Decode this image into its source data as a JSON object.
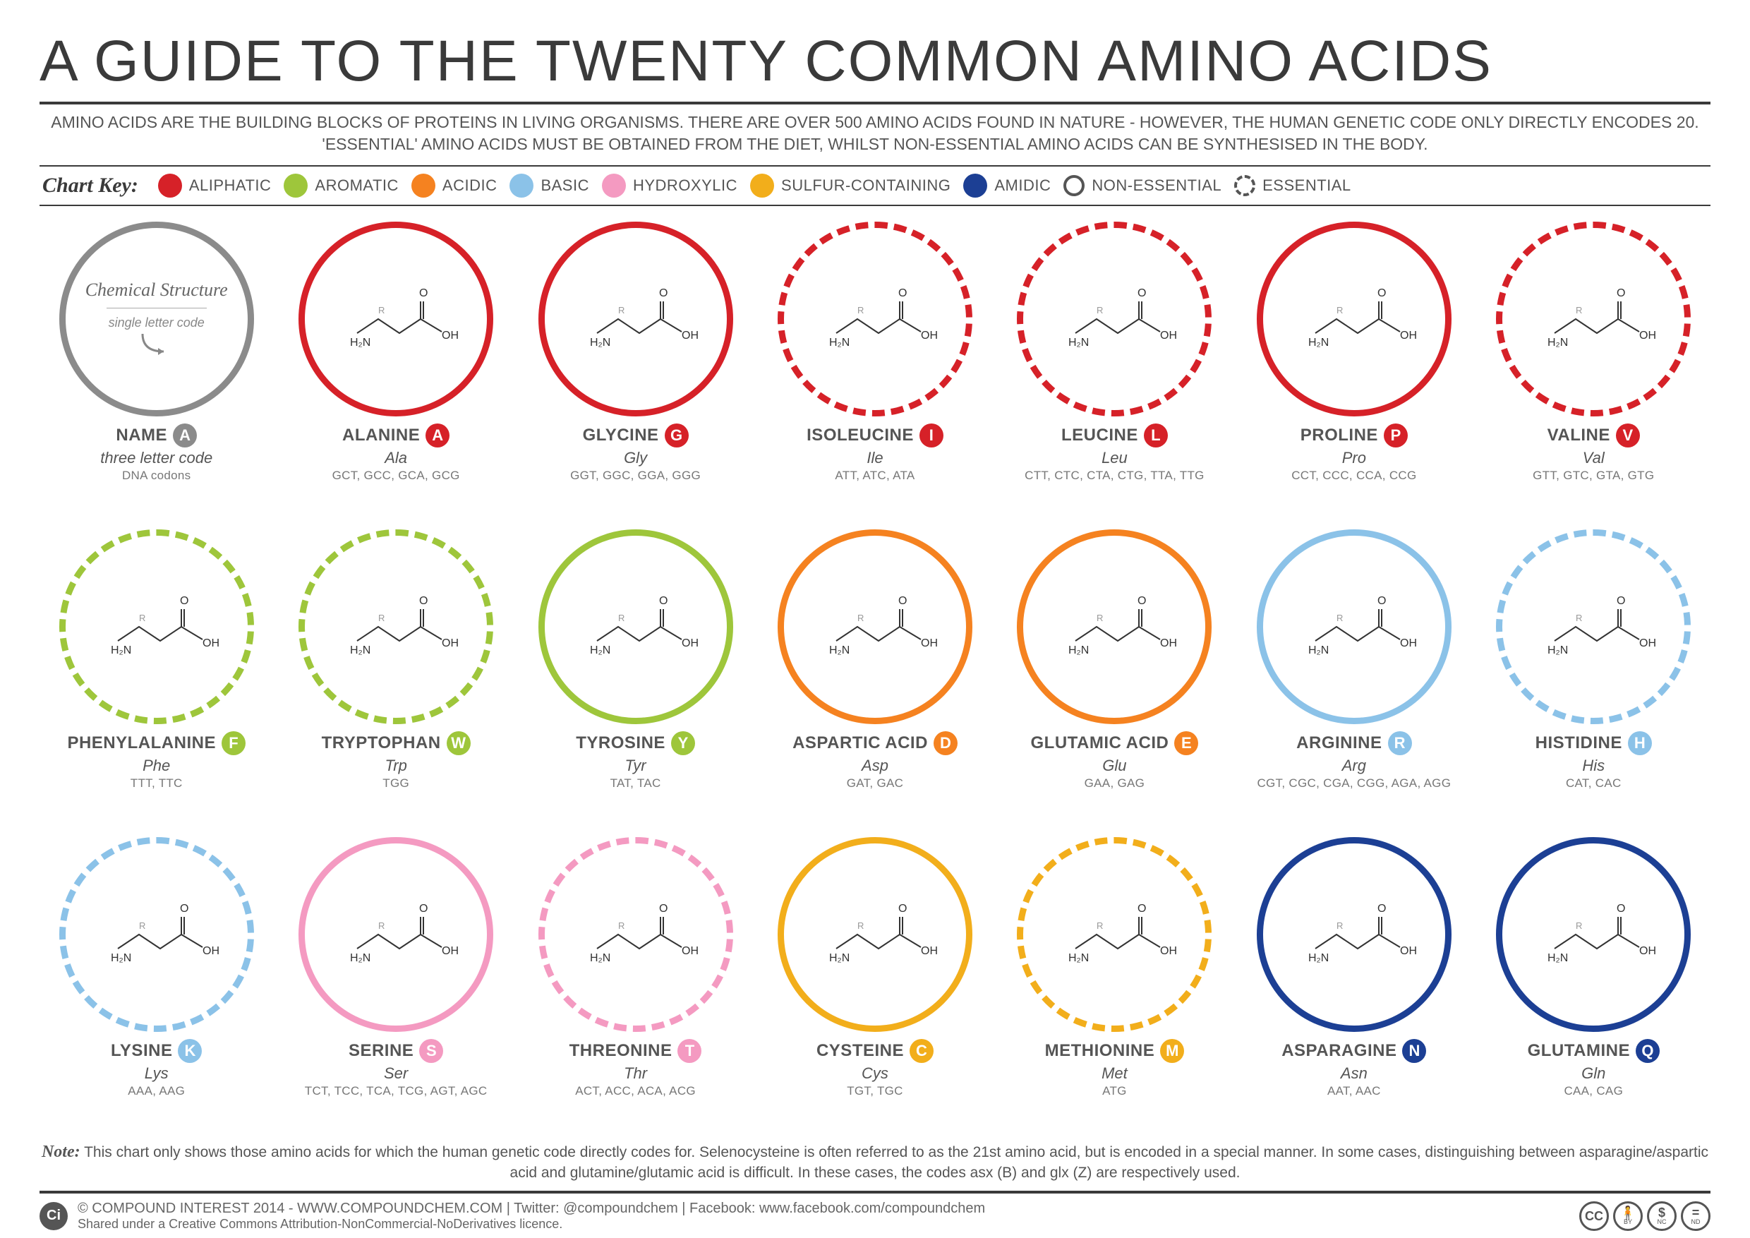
{
  "title": "A GUIDE TO THE TWENTY COMMON AMINO ACIDS",
  "subtitle": "AMINO ACIDS ARE THE BUILDING BLOCKS OF PROTEINS IN LIVING ORGANISMS. THERE ARE OVER 500 AMINO ACIDS FOUND IN NATURE - HOWEVER, THE HUMAN GENETIC CODE ONLY DIRECTLY ENCODES 20. 'ESSENTIAL' AMINO ACIDS MUST BE OBTAINED FROM THE DIET, WHILST NON-ESSENTIAL AMINO ACIDS CAN BE SYNTHESISED IN THE BODY.",
  "chart_key_label": "Chart Key:",
  "categories": {
    "aliphatic": {
      "label": "ALIPHATIC",
      "color": "#d62128"
    },
    "aromatic": {
      "label": "AROMATIC",
      "color": "#9ec63b"
    },
    "acidic": {
      "label": "ACIDIC",
      "color": "#f58220"
    },
    "basic": {
      "label": "BASIC",
      "color": "#8bc2e8"
    },
    "hydroxylic": {
      "label": "HYDROXYLIC",
      "color": "#f49ac1"
    },
    "sulfur": {
      "label": "SULFUR-CONTAINING",
      "color": "#f2ae1b"
    },
    "amidic": {
      "label": "AMIDIC",
      "color": "#1c3f94"
    }
  },
  "ring_legend": {
    "nonessential": {
      "label": "NON-ESSENTIAL",
      "stroke": "#555",
      "dashed": false
    },
    "essential": {
      "label": "ESSENTIAL",
      "stroke": "#555",
      "dashed": true
    }
  },
  "ring_width": 9,
  "legend_cell": {
    "circle_label": "Chemical Structure",
    "sub1": "single letter code",
    "name": "NAME",
    "badge": "A",
    "three": "three letter code",
    "codons": "DNA codons",
    "color": "#8b8b8b"
  },
  "amino_acids": [
    {
      "name": "ALANINE",
      "letter": "A",
      "three": "Ala",
      "codons": "GCT, GCC, GCA, GCG",
      "category": "aliphatic",
      "essential": false
    },
    {
      "name": "GLYCINE",
      "letter": "G",
      "three": "Gly",
      "codons": "GGT, GGC, GGA, GGG",
      "category": "aliphatic",
      "essential": false
    },
    {
      "name": "ISOLEUCINE",
      "letter": "I",
      "three": "Ile",
      "codons": "ATT, ATC, ATA",
      "category": "aliphatic",
      "essential": true
    },
    {
      "name": "LEUCINE",
      "letter": "L",
      "three": "Leu",
      "codons": "CTT, CTC, CTA, CTG, TTA, TTG",
      "category": "aliphatic",
      "essential": true
    },
    {
      "name": "PROLINE",
      "letter": "P",
      "three": "Pro",
      "codons": "CCT, CCC, CCA, CCG",
      "category": "aliphatic",
      "essential": false
    },
    {
      "name": "VALINE",
      "letter": "V",
      "three": "Val",
      "codons": "GTT, GTC, GTA, GTG",
      "category": "aliphatic",
      "essential": true
    },
    {
      "name": "PHENYLALANINE",
      "letter": "F",
      "three": "Phe",
      "codons": "TTT, TTC",
      "category": "aromatic",
      "essential": true
    },
    {
      "name": "TRYPTOPHAN",
      "letter": "W",
      "three": "Trp",
      "codons": "TGG",
      "category": "aromatic",
      "essential": true
    },
    {
      "name": "TYROSINE",
      "letter": "Y",
      "three": "Tyr",
      "codons": "TAT, TAC",
      "category": "aromatic",
      "essential": false
    },
    {
      "name": "ASPARTIC ACID",
      "letter": "D",
      "three": "Asp",
      "codons": "GAT, GAC",
      "category": "acidic",
      "essential": false
    },
    {
      "name": "GLUTAMIC ACID",
      "letter": "E",
      "three": "Glu",
      "codons": "GAA, GAG",
      "category": "acidic",
      "essential": false
    },
    {
      "name": "ARGININE",
      "letter": "R",
      "three": "Arg",
      "codons": "CGT, CGC, CGA, CGG, AGA, AGG",
      "category": "basic",
      "essential": false
    },
    {
      "name": "HISTIDINE",
      "letter": "H",
      "three": "His",
      "codons": "CAT, CAC",
      "category": "basic",
      "essential": true
    },
    {
      "name": "LYSINE",
      "letter": "K",
      "three": "Lys",
      "codons": "AAA, AAG",
      "category": "basic",
      "essential": true
    },
    {
      "name": "SERINE",
      "letter": "S",
      "three": "Ser",
      "codons": "TCT, TCC, TCA, TCG, AGT, AGC",
      "category": "hydroxylic",
      "essential": false
    },
    {
      "name": "THREONINE",
      "letter": "T",
      "three": "Thr",
      "codons": "ACT, ACC, ACA, ACG",
      "category": "hydroxylic",
      "essential": true
    },
    {
      "name": "CYSTEINE",
      "letter": "C",
      "three": "Cys",
      "codons": "TGT, TGC",
      "category": "sulfur",
      "essential": false
    },
    {
      "name": "METHIONINE",
      "letter": "M",
      "three": "Met",
      "codons": "ATG",
      "category": "sulfur",
      "essential": true
    },
    {
      "name": "ASPARAGINE",
      "letter": "N",
      "three": "Asn",
      "codons": "AAT, AAC",
      "category": "amidic",
      "essential": false
    },
    {
      "name": "GLUTAMINE",
      "letter": "Q",
      "three": "Gln",
      "codons": "CAA, CAG",
      "category": "amidic",
      "essential": false
    }
  ],
  "note_label": "Note:",
  "note": "This chart only shows those amino acids for which the human genetic code directly codes for. Selenocysteine is often referred to as the 21st amino acid, but is encoded in a special manner. In some cases, distinguishing between asparagine/aspartic acid and glutamine/glutamic acid is difficult. In these cases, the codes asx (B) and glx (Z) are respectively used.",
  "footer": {
    "ci": "Ci",
    "line1": "© COMPOUND INTEREST 2014 - WWW.COMPOUNDCHEM.COM  |  Twitter: @compoundchem  |  Facebook: www.facebook.com/compoundchem",
    "line2": "Shared under a Creative Commons Attribution-NonCommercial-NoDerivatives licence.",
    "cc": [
      "CC",
      "BY",
      "NC",
      "ND"
    ]
  },
  "struct_placeholder_fontsize": 18,
  "background_color": "#ffffff",
  "text_color": "#3a3a3a"
}
